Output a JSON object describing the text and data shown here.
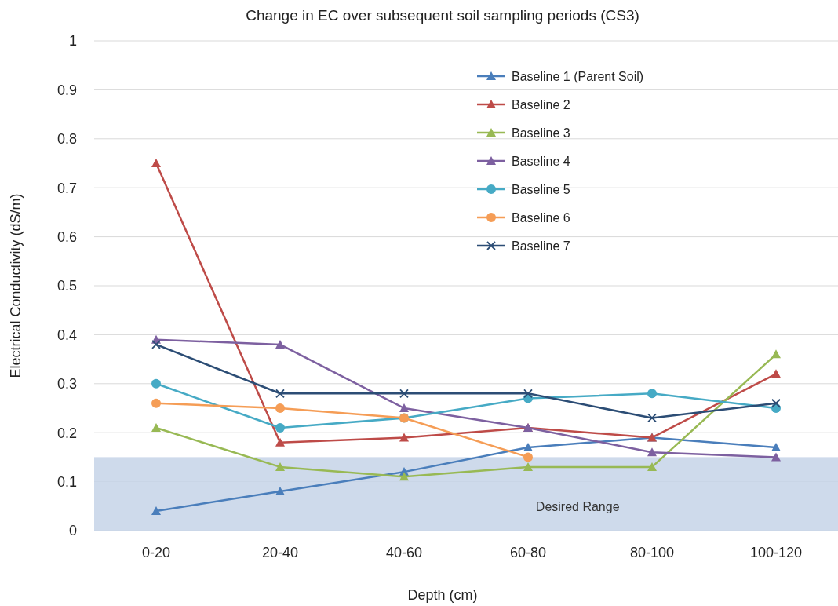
{
  "chart_data": {
    "type": "line",
    "title": "Change in EC over subsequent soil sampling periods (CS3)",
    "xlabel": "Depth (cm)",
    "ylabel": "Electrical Conductivity (dS/m)",
    "categories": [
      "0-20",
      "20-40",
      "40-60",
      "60-80",
      "80-100",
      "100-120"
    ],
    "series": [
      {
        "name": "Baseline 1 (Parent Soil)",
        "color": "#4a7ebb",
        "marker": "triangle",
        "values": [
          0.04,
          0.08,
          0.12,
          0.17,
          0.19,
          0.17
        ]
      },
      {
        "name": "Baseline 2",
        "color": "#be4b48",
        "marker": "triangle",
        "values": [
          0.75,
          0.18,
          0.19,
          0.21,
          0.19,
          0.32
        ]
      },
      {
        "name": "Baseline 3",
        "color": "#98b954",
        "marker": "triangle",
        "values": [
          0.21,
          0.13,
          0.11,
          0.13,
          0.13,
          0.36
        ]
      },
      {
        "name": "Baseline 4",
        "color": "#7d60a0",
        "marker": "triangle",
        "values": [
          0.39,
          0.38,
          0.25,
          0.21,
          0.16,
          0.15
        ]
      },
      {
        "name": "Baseline 5",
        "color": "#46aac5",
        "marker": "circle",
        "values": [
          0.3,
          0.21,
          0.23,
          0.27,
          0.28,
          0.25
        ]
      },
      {
        "name": "Baseline 6",
        "color": "#f59d56",
        "marker": "circle",
        "values": [
          0.26,
          0.25,
          0.23,
          0.15,
          null,
          null
        ]
      },
      {
        "name": "Baseline 7",
        "color": "#2c4d75",
        "marker": "cross",
        "values": [
          0.38,
          0.28,
          0.28,
          0.28,
          0.23,
          0.26
        ]
      }
    ],
    "ylim": [
      0,
      1
    ],
    "yticks": [
      0,
      0.1,
      0.2,
      0.3,
      0.4,
      0.5,
      0.6,
      0.7,
      0.8,
      0.9,
      1
    ],
    "bands": [
      {
        "axis": "y",
        "from": 0,
        "to": 0.15,
        "label": "Desired Range",
        "color": "#c6d4e8"
      }
    ],
    "grid": "y",
    "legend": "top right",
    "line_style": "solid"
  }
}
